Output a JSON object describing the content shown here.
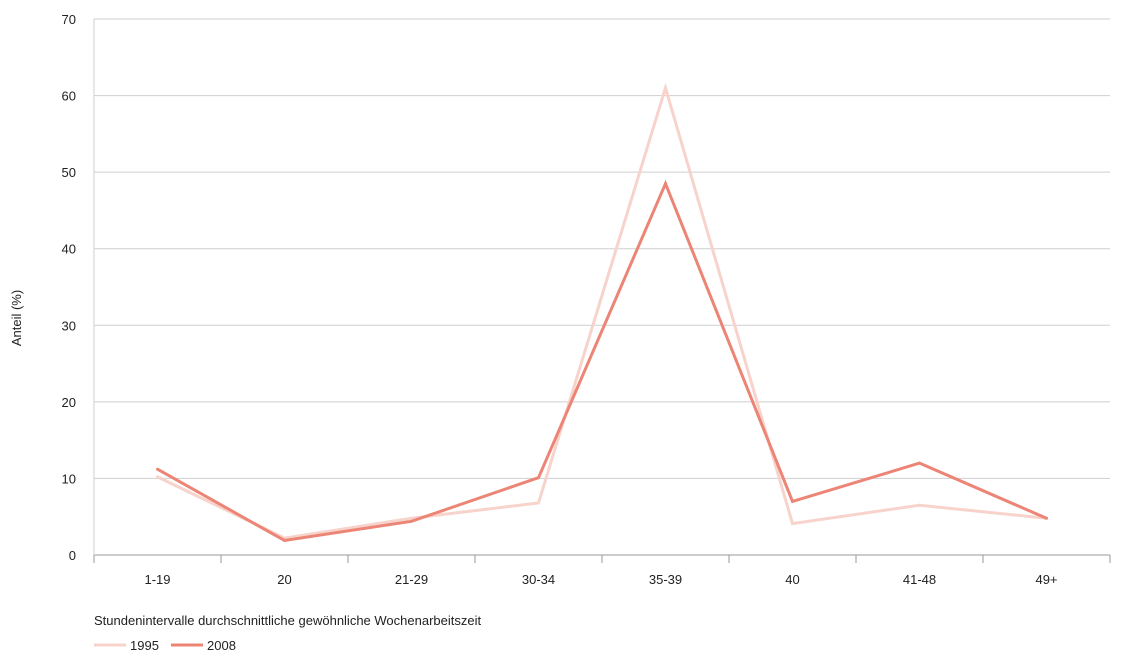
{
  "chart_data": {
    "type": "line",
    "categories": [
      "1-19",
      "20",
      "21-29",
      "30-34",
      "35-39",
      "40",
      "41-48",
      "49+"
    ],
    "series": [
      {
        "name": "1995",
        "values": [
          10.2,
          2.2,
          4.8,
          6.8,
          61.0,
          4.1,
          6.5,
          4.8
        ],
        "color": "#f7d3cc"
      },
      {
        "name": "2008",
        "values": [
          11.2,
          1.9,
          4.4,
          10.1,
          48.5,
          7.0,
          12.0,
          4.8
        ],
        "color": "#ec8576"
      }
    ],
    "xlabel": "Stundenintervalle durchschnittliche gewöhnliche Wochenarbeitszeit",
    "ylabel": "Anteil (%)",
    "ylim": [
      0,
      70
    ],
    "yticks": [
      0,
      10,
      20,
      30,
      40,
      50,
      60,
      70
    ],
    "grid": true,
    "legend_position": "bottom-left"
  }
}
